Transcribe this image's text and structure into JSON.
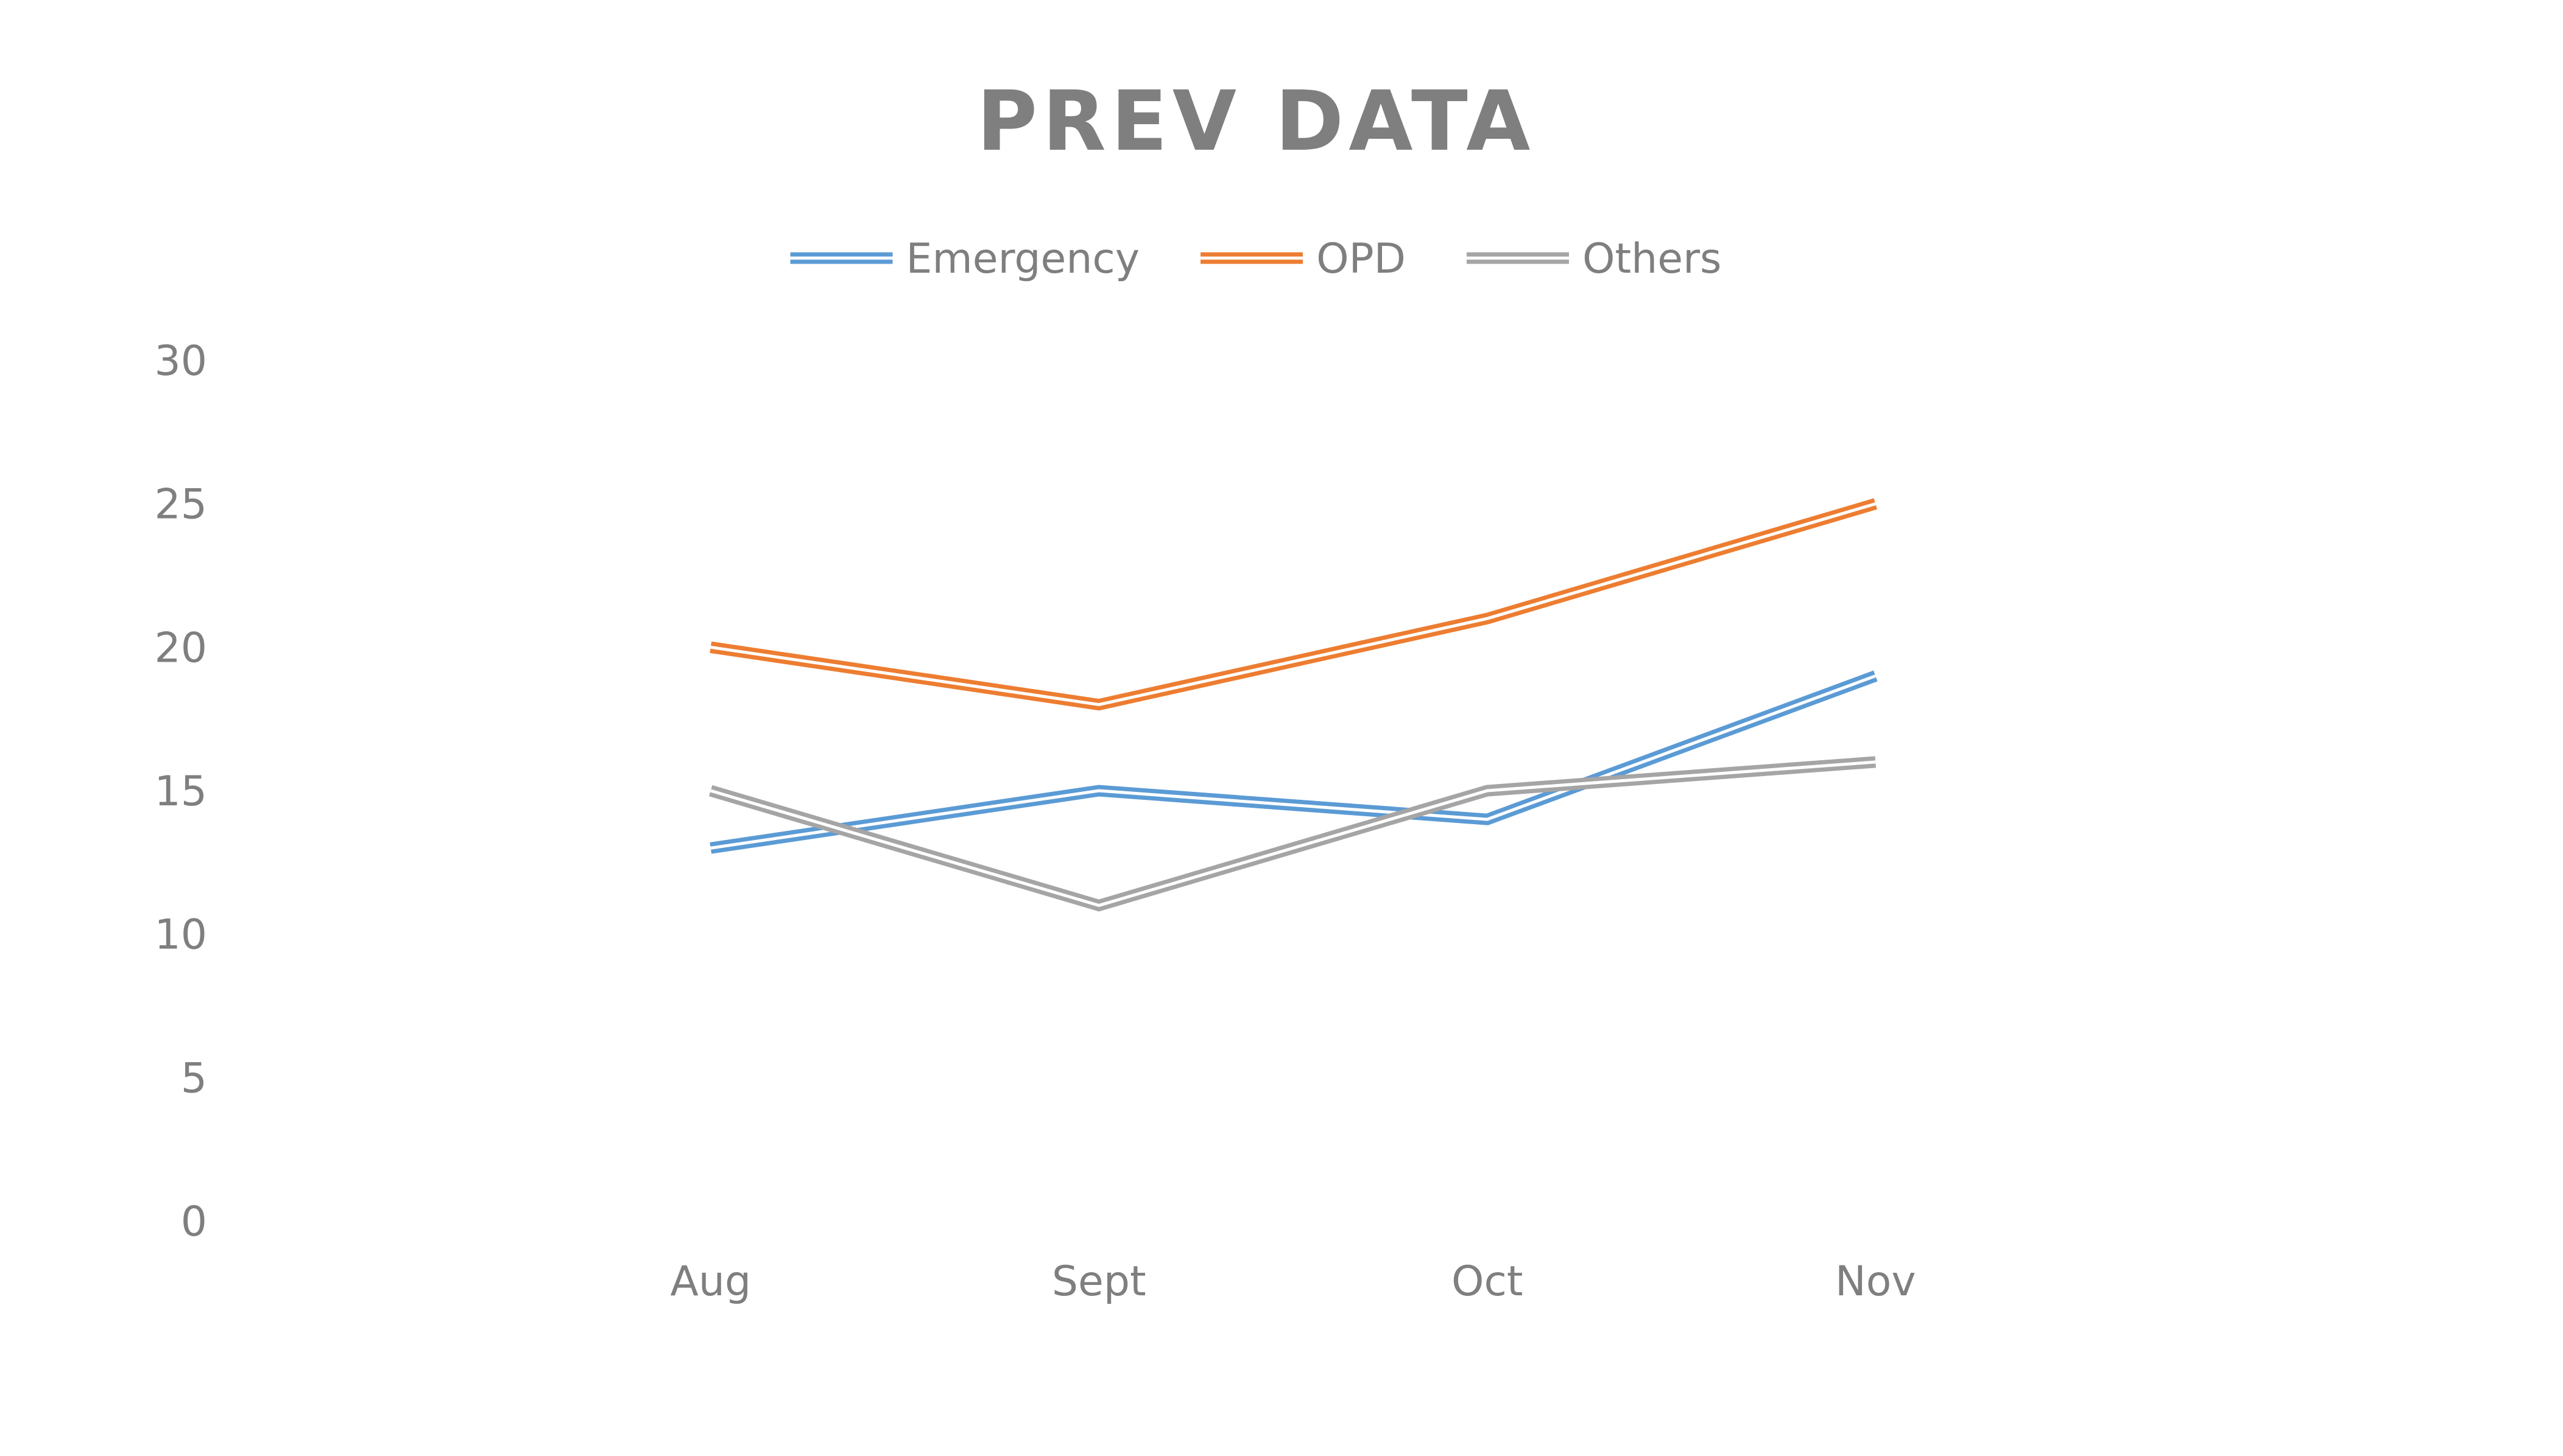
{
  "chart_data": {
    "type": "line",
    "title": "PREV DATA",
    "xlabel": "",
    "ylabel": "",
    "categories": [
      "Aug",
      "Sept",
      "Oct",
      "Nov"
    ],
    "ylim": [
      0,
      30
    ],
    "yticks": [
      0,
      5,
      10,
      15,
      20,
      25,
      30
    ],
    "grid": false,
    "legend_position": "top",
    "series": [
      {
        "name": "Emergency",
        "color": "#5b9bd5",
        "values": [
          13,
          15,
          14,
          19
        ]
      },
      {
        "name": "OPD",
        "color": "#ed7d31",
        "values": [
          20,
          18,
          21,
          25
        ]
      },
      {
        "name": "Others",
        "color": "#a5a5a5",
        "values": [
          15,
          11,
          15,
          16
        ]
      }
    ]
  }
}
